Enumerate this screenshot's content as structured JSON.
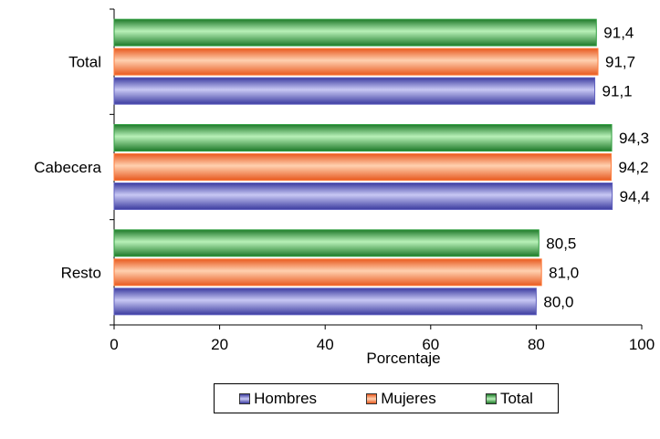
{
  "chart_data": {
    "type": "bar",
    "orientation": "horizontal",
    "categories": [
      "Total",
      "Cabecera",
      "Resto"
    ],
    "series": [
      {
        "name": "Total",
        "values": [
          91.4,
          94.3,
          80.5
        ],
        "labels": [
          "91,4",
          "94,3",
          "80,5"
        ],
        "color": "#2e9e3e"
      },
      {
        "name": "Mujeres",
        "values": [
          91.7,
          94.2,
          81.0
        ],
        "labels": [
          "91,7",
          "94,2",
          "81,0"
        ],
        "color": "#ff7b3a"
      },
      {
        "name": "Hombres",
        "values": [
          91.1,
          94.4,
          80.0
        ],
        "labels": [
          "91,1",
          "94,4",
          "80,0"
        ],
        "color": "#5f5fbf"
      }
    ],
    "xlabel": "Porcentaje",
    "xlim": [
      0,
      100
    ],
    "xticks": [
      "0",
      "20",
      "40",
      "60",
      "80",
      "100"
    ],
    "legend": {
      "position": "bottom",
      "order": [
        "Hombres",
        "Mujeres",
        "Total"
      ]
    }
  }
}
